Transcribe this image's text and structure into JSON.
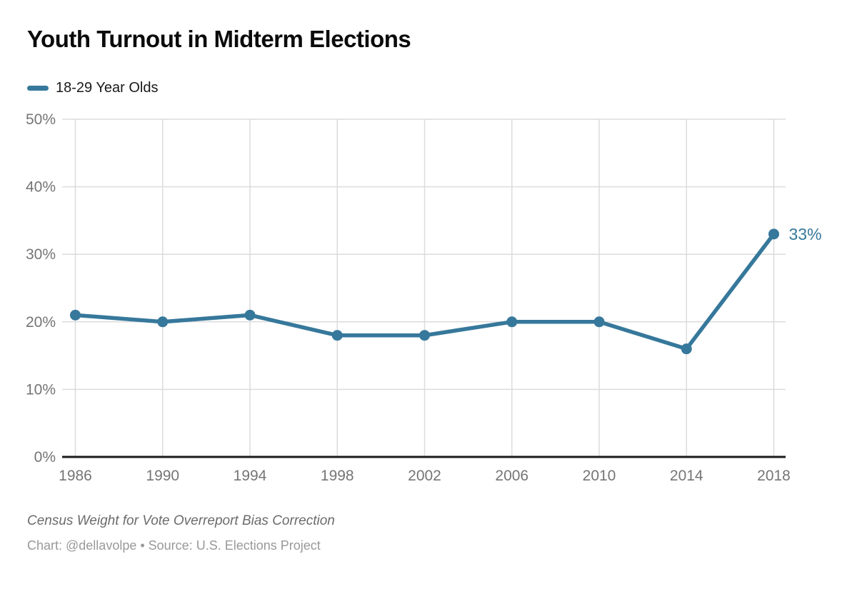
{
  "title": "Youth Turnout in Midterm Elections",
  "legend": {
    "series_label": "18-29 Year Olds"
  },
  "colors": {
    "line": "#36789b",
    "grid": "#dcdcdc",
    "axis": "#1a1a1a",
    "tick_label": "#757575"
  },
  "chart_data": {
    "type": "line",
    "x": [
      1986,
      1990,
      1994,
      1998,
      2002,
      2006,
      2010,
      2014,
      2018
    ],
    "series": [
      {
        "name": "18-29 Year Olds",
        "values": [
          21,
          20,
          21,
          18,
          18,
          20,
          20,
          16,
          33
        ]
      }
    ],
    "title": "Youth Turnout in Midterm Elections",
    "xlabel": "",
    "ylabel": "",
    "ylim": [
      0,
      50
    ],
    "ytick_step": 10,
    "ytick_suffix": "%",
    "grid": true,
    "legend_position": "top-left",
    "point_labels": [
      {
        "x": 2018,
        "value": 33,
        "label": "33%"
      }
    ]
  },
  "footer": {
    "note": "Census Weight for Vote Overreport Bias Correction",
    "byline": "Chart: @dellavolpe • Source: U.S. Elections Project"
  }
}
